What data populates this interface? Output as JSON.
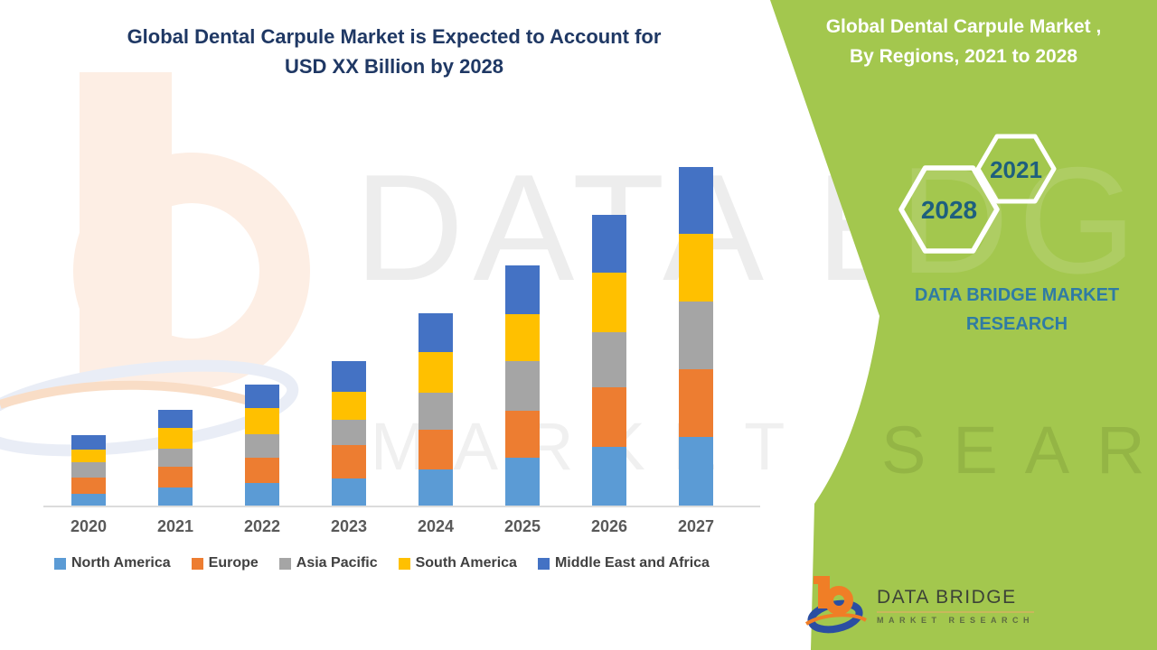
{
  "title": {
    "line1": "Global Dental Carpule Market is Expected to Account for",
    "line2": "USD XX Billion by 2028"
  },
  "green_panel": {
    "background_color": "#a3c74e",
    "heading_line1": "Global Dental Carpule Market ,",
    "heading_line2": "By Regions, 2021 to 2028",
    "hexagons": [
      {
        "label": "2021"
      },
      {
        "label": "2028"
      }
    ],
    "hex_label_color": "#1e5f7e",
    "brand_line1": "DATA BRIDGE MARKET",
    "brand_line2": "RESEARCH",
    "brand_text_color": "#2f7ba4"
  },
  "logo": {
    "name": "DATA BRIDGE",
    "subtitle": "MARKET RESEARCH",
    "orange": "#f07e26",
    "blue": "#2b4ea2"
  },
  "watermarks": {
    "big_text": "DATA BRIDGE",
    "sub_text": "MARKET RESEARCH",
    "green_big_text": "DGE",
    "green_sub_text": "SEARCH"
  },
  "chart_data": {
    "type": "bar",
    "stacked": true,
    "title": "Global Dental Carpule Market is Expected to Account for USD XX Billion by 2028",
    "xlabel": "",
    "ylabel": "",
    "units": "relative units (USD value masked as XX in source; heights estimated)",
    "value_axis_visible": false,
    "grid": false,
    "legend_position": "bottom",
    "categories": [
      "2020",
      "2021",
      "2022",
      "2023",
      "2024",
      "2025",
      "2026",
      "2027"
    ],
    "series": [
      {
        "name": "North America",
        "color": "#5b9bd5",
        "values": [
          1.3,
          2.0,
          2.5,
          3.0,
          4.0,
          5.3,
          6.5,
          7.6
        ]
      },
      {
        "name": "Europe",
        "color": "#ed7d31",
        "values": [
          1.8,
          2.3,
          2.8,
          3.7,
          4.4,
          5.2,
          6.6,
          7.5
        ]
      },
      {
        "name": "Asia Pacific",
        "color": "#a5a5a5",
        "values": [
          1.7,
          2.0,
          2.6,
          2.8,
          4.1,
          5.5,
          6.1,
          7.5
        ]
      },
      {
        "name": "South America",
        "color": "#ffc000",
        "values": [
          1.4,
          2.3,
          2.9,
          3.1,
          4.5,
          5.2,
          6.6,
          7.5
        ]
      },
      {
        "name": "Middle East and Africa",
        "color": "#4472c4",
        "values": [
          1.6,
          2.0,
          2.6,
          3.4,
          4.3,
          5.4,
          6.4,
          7.4
        ]
      }
    ],
    "totals": [
      7.8,
      10.6,
      13.4,
      16.0,
      21.3,
      26.6,
      32.2,
      37.5
    ]
  }
}
